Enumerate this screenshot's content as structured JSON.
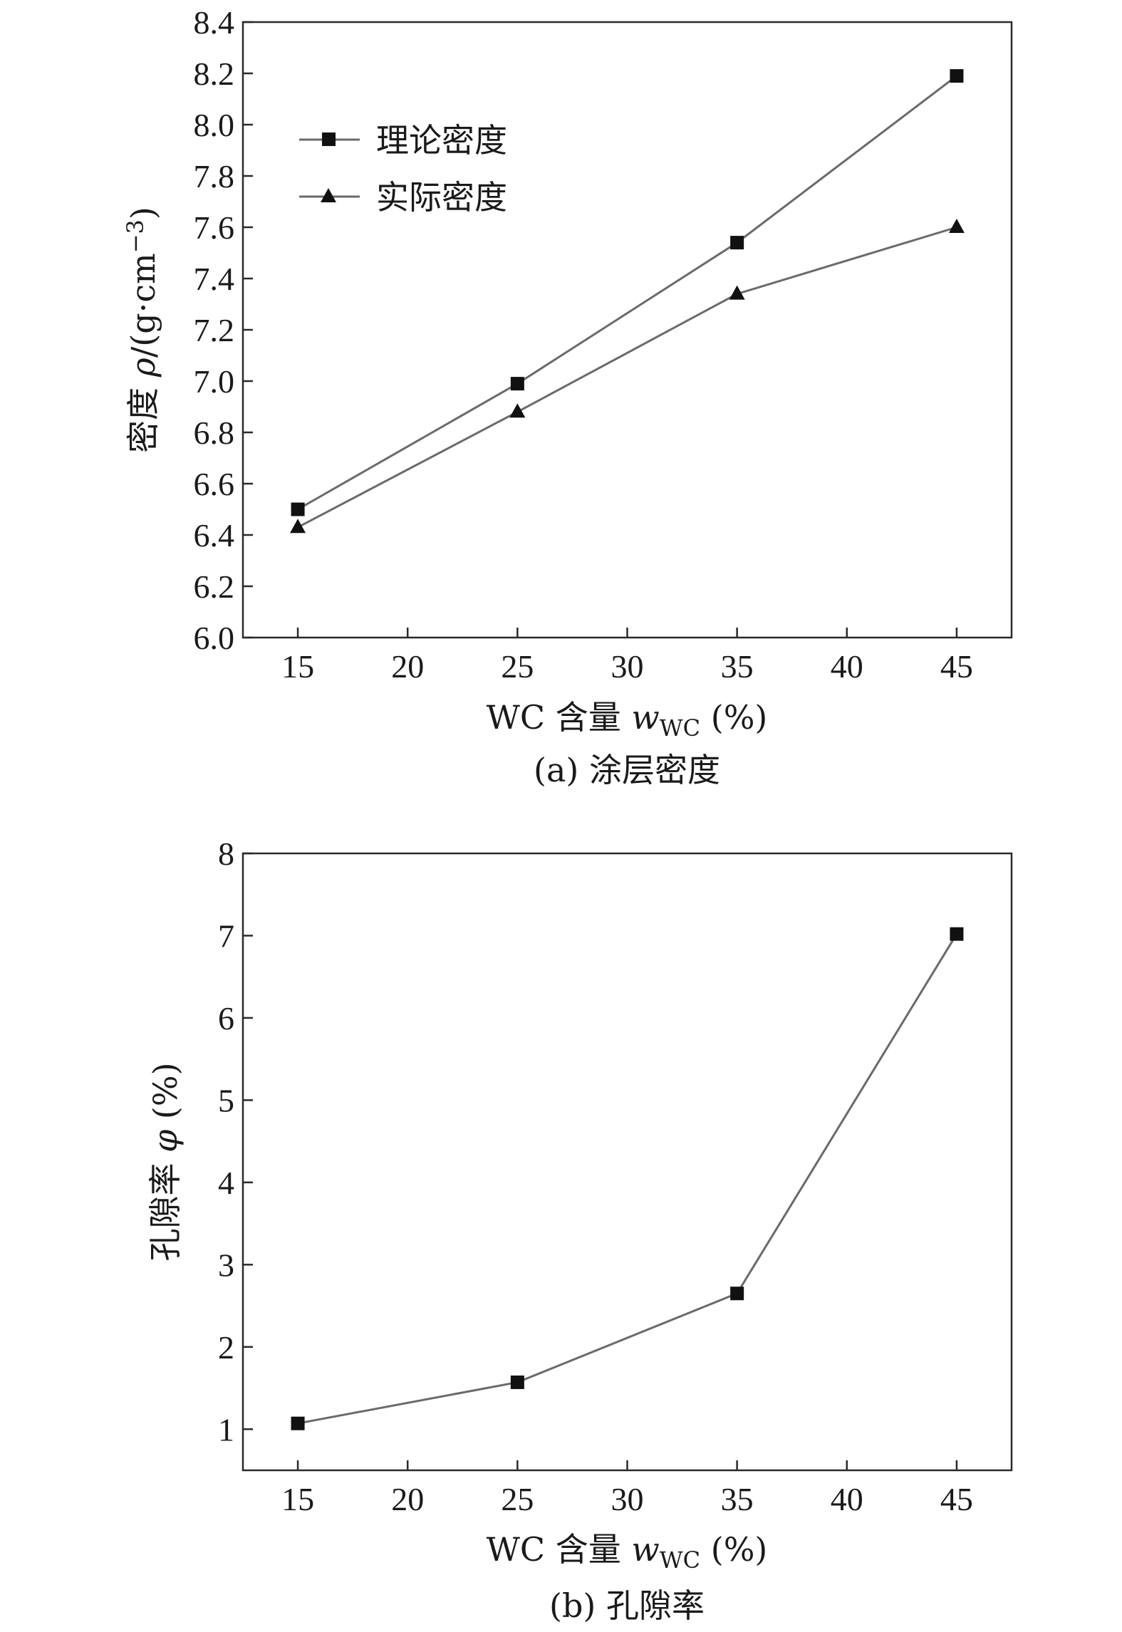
{
  "chart_data": [
    {
      "type": "line",
      "panel_id": "a",
      "caption": "(a) 涂层密度",
      "xlabel": {
        "prefix": "WC 含量 ",
        "var": "w",
        "sub": "WC",
        "suffix": " (%)"
      },
      "ylabel": {
        "prefix": "密度 ",
        "var": "ρ",
        "suffix": "/(g·cm",
        "sup": "−3",
        "close": ")"
      },
      "xlim": [
        12.5,
        47.5
      ],
      "ylim": [
        6.0,
        8.4
      ],
      "xticks": [
        15,
        20,
        25,
        30,
        35,
        40,
        45
      ],
      "xtick_labels": [
        "15",
        "20",
        "25",
        "30",
        "35",
        "40",
        "45"
      ],
      "yticks": [
        6.0,
        6.2,
        6.4,
        6.6,
        6.8,
        7.0,
        7.2,
        7.4,
        7.6,
        7.8,
        8.0,
        8.2,
        8.4
      ],
      "ytick_labels": [
        "6.0",
        "6.2",
        "6.4",
        "6.6",
        "6.8",
        "7.0",
        "7.2",
        "7.4",
        "7.6",
        "7.8",
        "8.0",
        "8.2",
        "8.4"
      ],
      "legend_position": "upper-left",
      "grid": false,
      "series": [
        {
          "name": "理论密度",
          "marker": "square",
          "x": [
            15,
            25,
            35,
            45
          ],
          "y": [
            6.5,
            6.99,
            7.54,
            8.19
          ]
        },
        {
          "name": "实际密度",
          "marker": "triangle",
          "x": [
            15,
            25,
            35,
            45
          ],
          "y": [
            6.43,
            6.88,
            7.34,
            7.6
          ]
        }
      ]
    },
    {
      "type": "line",
      "panel_id": "b",
      "caption": "(b) 孔隙率",
      "xlabel": {
        "prefix": "WC 含量 ",
        "var": "w",
        "sub": "WC",
        "suffix": " (%)"
      },
      "ylabel": {
        "prefix": "孔隙率 ",
        "var": "φ",
        "suffix": " (%)"
      },
      "xlim": [
        12.5,
        47.5
      ],
      "ylim": [
        0.5,
        8.0
      ],
      "xticks": [
        15,
        20,
        25,
        30,
        35,
        40,
        45
      ],
      "xtick_labels": [
        "15",
        "20",
        "25",
        "30",
        "35",
        "40",
        "45"
      ],
      "yticks": [
        1,
        2,
        3,
        4,
        5,
        6,
        7,
        8
      ],
      "ytick_labels": [
        "1",
        "2",
        "3",
        "4",
        "5",
        "6",
        "7",
        "8"
      ],
      "grid": false,
      "series": [
        {
          "marker": "square",
          "x": [
            15,
            25,
            35,
            45
          ],
          "y": [
            1.07,
            1.57,
            2.65,
            7.02
          ]
        }
      ]
    }
  ]
}
